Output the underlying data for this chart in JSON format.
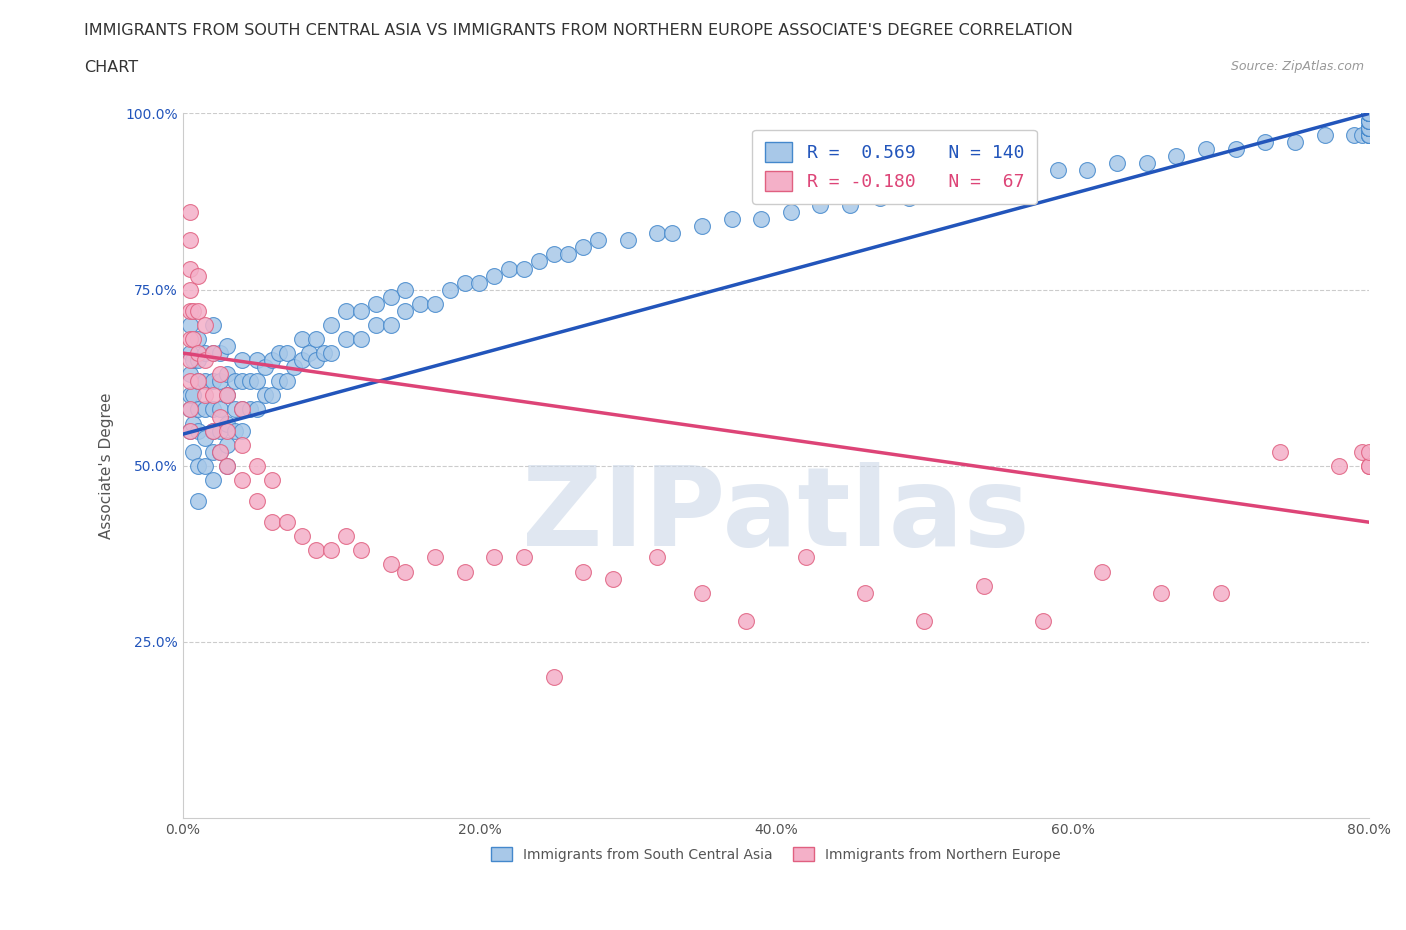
{
  "title_line1": "IMMIGRANTS FROM SOUTH CENTRAL ASIA VS IMMIGRANTS FROM NORTHERN EUROPE ASSOCIATE'S DEGREE CORRELATION",
  "title_line2": "CHART",
  "source_text": "Source: ZipAtlas.com",
  "ylabel": "Associate's Degree",
  "xlim": [
    0.0,
    0.8
  ],
  "ylim": [
    0.0,
    1.0
  ],
  "xtick_labels": [
    "0.0%",
    "20.0%",
    "40.0%",
    "60.0%",
    "80.0%"
  ],
  "xtick_vals": [
    0.0,
    0.2,
    0.4,
    0.6,
    0.8
  ],
  "ytick_labels": [
    "25.0%",
    "50.0%",
    "75.0%",
    "100.0%"
  ],
  "ytick_vals": [
    0.25,
    0.5,
    0.75,
    1.0
  ],
  "blue_R": 0.569,
  "blue_N": 140,
  "pink_R": -0.18,
  "pink_N": 67,
  "blue_color": "#a8c8e8",
  "pink_color": "#f4b0c8",
  "blue_edge_color": "#4488cc",
  "pink_edge_color": "#e06080",
  "blue_line_color": "#2255bb",
  "pink_line_color": "#dd4477",
  "watermark_text": "ZIPatlas",
  "watermark_color": "#ccd8e8",
  "title_fontsize": 12,
  "axis_label_fontsize": 11,
  "tick_fontsize": 10,
  "blue_scatter_x": [
    0.005,
    0.005,
    0.005,
    0.005,
    0.005,
    0.005,
    0.007,
    0.007,
    0.007,
    0.007,
    0.01,
    0.01,
    0.01,
    0.01,
    0.01,
    0.01,
    0.01,
    0.015,
    0.015,
    0.015,
    0.015,
    0.015,
    0.02,
    0.02,
    0.02,
    0.02,
    0.02,
    0.02,
    0.02,
    0.025,
    0.025,
    0.025,
    0.025,
    0.025,
    0.03,
    0.03,
    0.03,
    0.03,
    0.03,
    0.03,
    0.035,
    0.035,
    0.035,
    0.04,
    0.04,
    0.04,
    0.04,
    0.045,
    0.045,
    0.05,
    0.05,
    0.05,
    0.055,
    0.055,
    0.06,
    0.06,
    0.065,
    0.065,
    0.07,
    0.07,
    0.075,
    0.08,
    0.08,
    0.085,
    0.09,
    0.09,
    0.095,
    0.1,
    0.1,
    0.11,
    0.11,
    0.12,
    0.12,
    0.13,
    0.13,
    0.14,
    0.14,
    0.15,
    0.15,
    0.16,
    0.17,
    0.18,
    0.19,
    0.2,
    0.21,
    0.22,
    0.23,
    0.24,
    0.25,
    0.26,
    0.27,
    0.28,
    0.3,
    0.32,
    0.33,
    0.35,
    0.37,
    0.39,
    0.41,
    0.43,
    0.45,
    0.47,
    0.49,
    0.51,
    0.53,
    0.55,
    0.57,
    0.59,
    0.61,
    0.63,
    0.65,
    0.67,
    0.69,
    0.71,
    0.73,
    0.75,
    0.77,
    0.79,
    0.795,
    0.8,
    0.8,
    0.8,
    0.8,
    0.8,
    0.8,
    0.8,
    0.8,
    0.8,
    0.8,
    0.8,
    0.8,
    0.8,
    0.8,
    0.8,
    0.8,
    0.8,
    0.8,
    0.8,
    0.8,
    0.8
  ],
  "blue_scatter_y": [
    0.55,
    0.58,
    0.6,
    0.63,
    0.66,
    0.7,
    0.52,
    0.56,
    0.6,
    0.65,
    0.45,
    0.5,
    0.55,
    0.58,
    0.62,
    0.65,
    0.68,
    0.5,
    0.54,
    0.58,
    0.62,
    0.66,
    0.48,
    0.52,
    0.55,
    0.58,
    0.62,
    0.66,
    0.7,
    0.52,
    0.55,
    0.58,
    0.62,
    0.66,
    0.5,
    0.53,
    0.56,
    0.6,
    0.63,
    0.67,
    0.55,
    0.58,
    0.62,
    0.55,
    0.58,
    0.62,
    0.65,
    0.58,
    0.62,
    0.58,
    0.62,
    0.65,
    0.6,
    0.64,
    0.6,
    0.65,
    0.62,
    0.66,
    0.62,
    0.66,
    0.64,
    0.65,
    0.68,
    0.66,
    0.65,
    0.68,
    0.66,
    0.66,
    0.7,
    0.68,
    0.72,
    0.68,
    0.72,
    0.7,
    0.73,
    0.7,
    0.74,
    0.72,
    0.75,
    0.73,
    0.73,
    0.75,
    0.76,
    0.76,
    0.77,
    0.78,
    0.78,
    0.79,
    0.8,
    0.8,
    0.81,
    0.82,
    0.82,
    0.83,
    0.83,
    0.84,
    0.85,
    0.85,
    0.86,
    0.87,
    0.87,
    0.88,
    0.88,
    0.89,
    0.9,
    0.9,
    0.91,
    0.92,
    0.92,
    0.93,
    0.93,
    0.94,
    0.95,
    0.95,
    0.96,
    0.96,
    0.97,
    0.97,
    0.97,
    0.97,
    0.97,
    0.97,
    0.97,
    0.98,
    0.98,
    0.98,
    0.98,
    0.98,
    0.98,
    0.99,
    0.99,
    0.99,
    0.99,
    1.0,
    1.0,
    1.0,
    1.0,
    1.0,
    1.0,
    1.0
  ],
  "pink_scatter_x": [
    0.005,
    0.005,
    0.005,
    0.005,
    0.005,
    0.005,
    0.005,
    0.005,
    0.005,
    0.005,
    0.007,
    0.007,
    0.01,
    0.01,
    0.01,
    0.01,
    0.015,
    0.015,
    0.015,
    0.02,
    0.02,
    0.02,
    0.025,
    0.025,
    0.025,
    0.03,
    0.03,
    0.03,
    0.04,
    0.04,
    0.04,
    0.05,
    0.05,
    0.06,
    0.06,
    0.07,
    0.08,
    0.09,
    0.1,
    0.11,
    0.12,
    0.14,
    0.15,
    0.17,
    0.19,
    0.21,
    0.23,
    0.25,
    0.27,
    0.29,
    0.32,
    0.35,
    0.38,
    0.42,
    0.46,
    0.5,
    0.54,
    0.58,
    0.62,
    0.66,
    0.7,
    0.74,
    0.78,
    0.795,
    0.8,
    0.8,
    0.8
  ],
  "pink_scatter_y": [
    0.55,
    0.58,
    0.62,
    0.65,
    0.68,
    0.72,
    0.75,
    0.78,
    0.82,
    0.86,
    0.68,
    0.72,
    0.62,
    0.66,
    0.72,
    0.77,
    0.6,
    0.65,
    0.7,
    0.55,
    0.6,
    0.66,
    0.52,
    0.57,
    0.63,
    0.5,
    0.55,
    0.6,
    0.48,
    0.53,
    0.58,
    0.45,
    0.5,
    0.42,
    0.48,
    0.42,
    0.4,
    0.38,
    0.38,
    0.4,
    0.38,
    0.36,
    0.35,
    0.37,
    0.35,
    0.37,
    0.37,
    0.2,
    0.35,
    0.34,
    0.37,
    0.32,
    0.28,
    0.37,
    0.32,
    0.28,
    0.33,
    0.28,
    0.35,
    0.32,
    0.32,
    0.52,
    0.5,
    0.52,
    0.5,
    0.5,
    0.52
  ],
  "blue_trend_x": [
    0.0,
    0.8
  ],
  "blue_trend_y": [
    0.545,
    1.0
  ],
  "pink_trend_x": [
    0.0,
    0.8
  ],
  "pink_trend_y": [
    0.66,
    0.42
  ],
  "bg_color": "#ffffff",
  "grid_color": "#cccccc"
}
